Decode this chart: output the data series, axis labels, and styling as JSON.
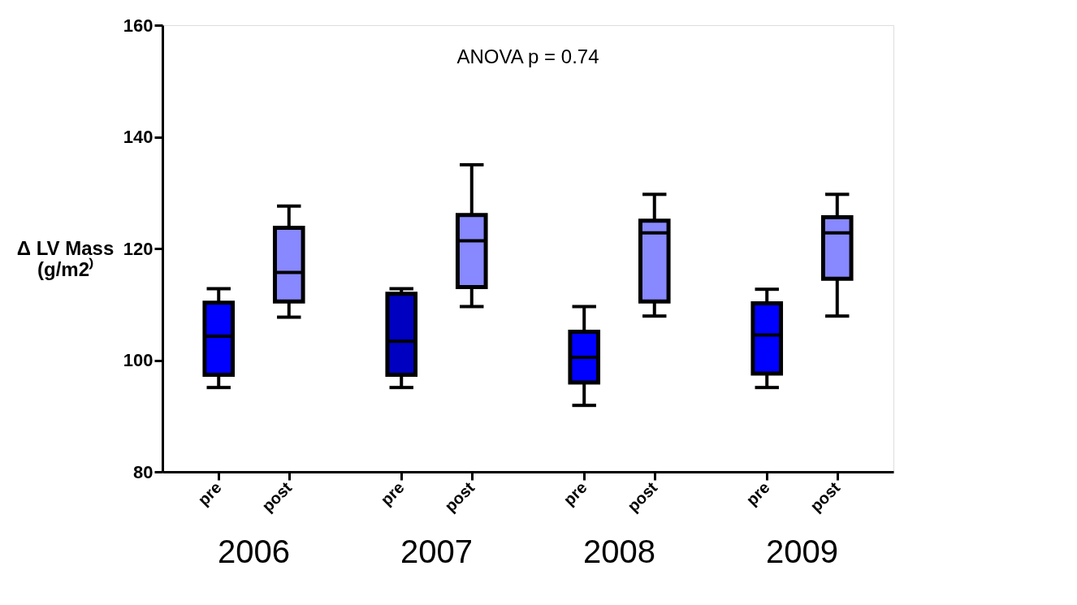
{
  "chart_data": {
    "type": "box",
    "ylabel": "Δ LV Mass (g/m2⁾",
    "categories": [
      "pre",
      "post",
      "pre",
      "post",
      "pre",
      "post",
      "pre",
      "post"
    ],
    "boxes": [
      {
        "low": 95.1,
        "q1": 97.4,
        "median": 104.3,
        "q3": 110.3,
        "high": 112.8
      },
      {
        "low": 107.7,
        "q1": 110.5,
        "median": 115.7,
        "q3": 123.7,
        "high": 127.6
      },
      {
        "low": 95.1,
        "q1": 97.4,
        "median": 103.4,
        "q3": 111.9,
        "high": 112.8
      },
      {
        "low": 109.6,
        "q1": 113.1,
        "median": 121.4,
        "q3": 126.0,
        "high": 135.0
      },
      {
        "low": 91.9,
        "q1": 96.0,
        "median": 100.5,
        "q3": 105.1,
        "high": 109.6
      },
      {
        "low": 107.9,
        "q1": 110.5,
        "median": 122.8,
        "q3": 125.0,
        "high": 129.7
      },
      {
        "low": 95.1,
        "q1": 97.6,
        "median": 104.5,
        "q3": 110.2,
        "high": 112.7
      },
      {
        "low": 107.9,
        "q1": 114.6,
        "median": 122.8,
        "q3": 125.6,
        "high": 129.7
      }
    ],
    "colors": [
      "#0000ff",
      "#8888ff",
      "#0000c0",
      "#8888ff",
      "#0000ff",
      "#8888ff",
      "#0000ff",
      "#8888ff"
    ],
    "ylim": [
      80,
      160
    ],
    "yticks": [
      80,
      100,
      120,
      140,
      160
    ],
    "grid": false,
    "annotations": [
      "ANOVA p = 0.74",
      "2006",
      "2007",
      "2008",
      "2009"
    ]
  }
}
